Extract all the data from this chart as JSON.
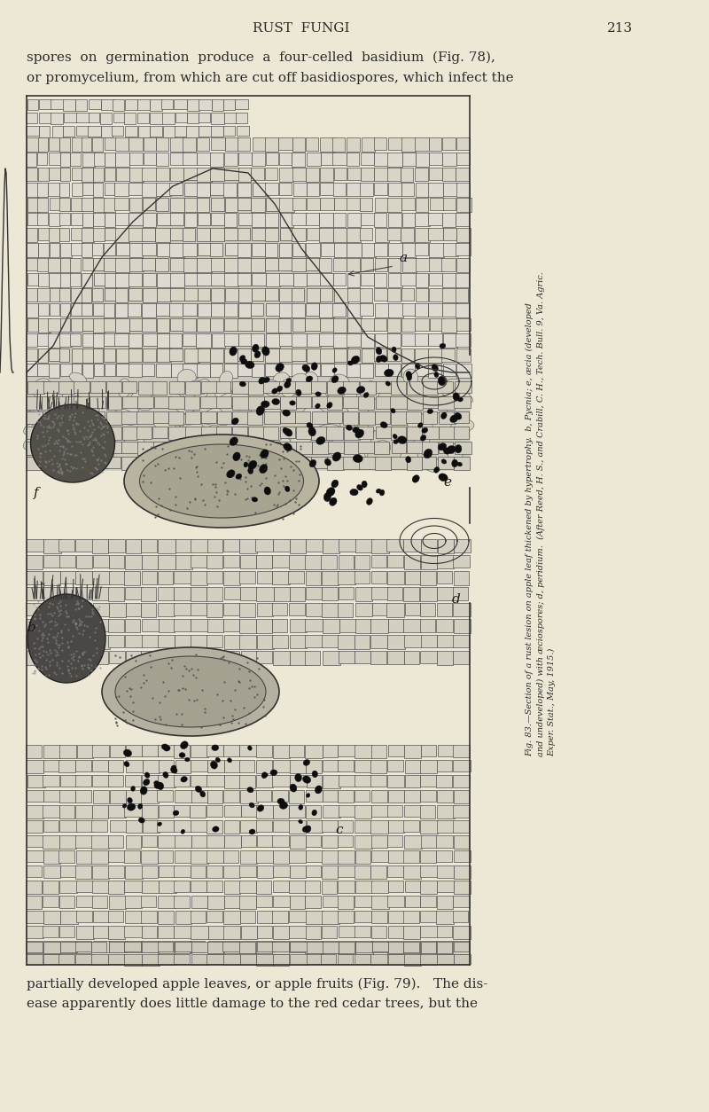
{
  "background_color": "#ede8d5",
  "page_width": 8.0,
  "page_height": 12.54,
  "header_text": "RUST  FUNGI",
  "page_number": "213",
  "top_text_line1": "spores  on  germination  produce  a  four-celled  basidium  (Fig. 78),",
  "top_text_line2": "or promycelium, from which are cut off basidiospores, which infect the",
  "bottom_text_line1": "partially developed apple leaves, or apple fruits (Fig. 79).   The dis-",
  "bottom_text_line2": "ease apparently does little damage to the red cedar trees, but the",
  "caption_line1": "Fig. 83.—Section of a rust lesion on apple leaf thickened by hypertrophy.  b, Pycnia; e, æcia (developed",
  "caption_line2": "and undeveloped) with æciospores; d, peridium.  (After Reed, H. S., and Crabill, C. H., Tech. Bull. 9, Va. Agric.",
  "caption_line3": "Exper. Stat., May, 1915.)",
  "text_color": "#2a2a2a",
  "line_color": "#1a1a1a"
}
